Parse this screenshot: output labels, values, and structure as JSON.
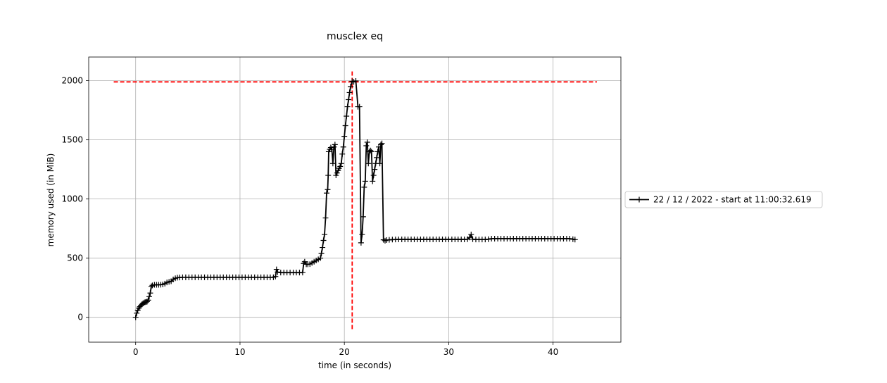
{
  "chart_data": {
    "type": "line",
    "title": "musclex eq",
    "xlabel": "time (in seconds)",
    "ylabel": "memory used (in MiB)",
    "xlim": [
      -4.5,
      46.5
    ],
    "ylim": [
      -210,
      2200
    ],
    "x_ticks": [
      0,
      10,
      20,
      30,
      40
    ],
    "y_ticks": [
      0,
      500,
      1000,
      1500,
      2000
    ],
    "x_tick_labels": [
      "0",
      "10",
      "20",
      "30",
      "40"
    ],
    "y_tick_labels": [
      "0",
      "500",
      "1000",
      "1500",
      "2000"
    ],
    "grid": true,
    "legend_position": "right",
    "series": [
      {
        "name": "22 / 12 / 2022 - start at 11:00:32.619",
        "color": "#000000",
        "marker": "plus",
        "points": [
          [
            0.0,
            0
          ],
          [
            0.1,
            35
          ],
          [
            0.2,
            60
          ],
          [
            0.3,
            78
          ],
          [
            0.4,
            90
          ],
          [
            0.5,
            100
          ],
          [
            0.6,
            110
          ],
          [
            0.7,
            117
          ],
          [
            0.8,
            124
          ],
          [
            0.9,
            128
          ],
          [
            1.0,
            130
          ],
          [
            1.1,
            133
          ],
          [
            1.2,
            145
          ],
          [
            1.3,
            175
          ],
          [
            1.4,
            205
          ],
          [
            1.5,
            262
          ],
          [
            1.6,
            270
          ],
          [
            1.8,
            275
          ],
          [
            2.0,
            275
          ],
          [
            2.2,
            275
          ],
          [
            2.4,
            276
          ],
          [
            2.6,
            278
          ],
          [
            2.8,
            285
          ],
          [
            3.0,
            295
          ],
          [
            3.2,
            300
          ],
          [
            3.4,
            305
          ],
          [
            3.6,
            320
          ],
          [
            3.8,
            330
          ],
          [
            4.0,
            335
          ],
          [
            4.2,
            337
          ],
          [
            4.5,
            338
          ],
          [
            4.8,
            338
          ],
          [
            5.1,
            338
          ],
          [
            5.4,
            338
          ],
          [
            5.7,
            338
          ],
          [
            6.0,
            338
          ],
          [
            6.3,
            338
          ],
          [
            6.6,
            338
          ],
          [
            6.9,
            338
          ],
          [
            7.2,
            338
          ],
          [
            7.5,
            338
          ],
          [
            7.8,
            338
          ],
          [
            8.1,
            338
          ],
          [
            8.4,
            338
          ],
          [
            8.7,
            338
          ],
          [
            9.0,
            338
          ],
          [
            9.3,
            338
          ],
          [
            9.6,
            338
          ],
          [
            9.9,
            338
          ],
          [
            10.2,
            338
          ],
          [
            10.5,
            338
          ],
          [
            10.8,
            338
          ],
          [
            11.1,
            338
          ],
          [
            11.4,
            338
          ],
          [
            11.7,
            338
          ],
          [
            12.0,
            338
          ],
          [
            12.3,
            338
          ],
          [
            12.6,
            338
          ],
          [
            12.9,
            338
          ],
          [
            13.2,
            338
          ],
          [
            13.4,
            345
          ],
          [
            13.5,
            405
          ],
          [
            13.6,
            382
          ],
          [
            13.9,
            378
          ],
          [
            14.2,
            378
          ],
          [
            14.5,
            378
          ],
          [
            14.8,
            378
          ],
          [
            15.1,
            378
          ],
          [
            15.4,
            378
          ],
          [
            15.7,
            378
          ],
          [
            16.0,
            378
          ],
          [
            16.1,
            455
          ],
          [
            16.2,
            470
          ],
          [
            16.35,
            448
          ],
          [
            16.5,
            448
          ],
          [
            16.7,
            450
          ],
          [
            16.9,
            460
          ],
          [
            17.1,
            470
          ],
          [
            17.3,
            480
          ],
          [
            17.5,
            490
          ],
          [
            17.7,
            500
          ],
          [
            17.8,
            540
          ],
          [
            17.9,
            590
          ],
          [
            18.0,
            650
          ],
          [
            18.1,
            700
          ],
          [
            18.2,
            840
          ],
          [
            18.3,
            1050
          ],
          [
            18.4,
            1080
          ],
          [
            18.45,
            1200
          ],
          [
            18.5,
            1400
          ],
          [
            18.6,
            1420
          ],
          [
            18.7,
            1435
          ],
          [
            18.8,
            1420
          ],
          [
            18.9,
            1300
          ],
          [
            19.0,
            1440
          ],
          [
            19.1,
            1460
          ],
          [
            19.2,
            1200
          ],
          [
            19.3,
            1220
          ],
          [
            19.4,
            1240
          ],
          [
            19.5,
            1260
          ],
          [
            19.6,
            1275
          ],
          [
            19.7,
            1300
          ],
          [
            19.8,
            1380
          ],
          [
            19.9,
            1440
          ],
          [
            20.0,
            1530
          ],
          [
            20.1,
            1620
          ],
          [
            20.2,
            1700
          ],
          [
            20.3,
            1780
          ],
          [
            20.4,
            1840
          ],
          [
            20.5,
            1900
          ],
          [
            20.6,
            1950
          ],
          [
            20.75,
            1995
          ],
          [
            20.9,
            1990
          ],
          [
            21.1,
            1998
          ],
          [
            21.3,
            1780
          ],
          [
            21.45,
            1780
          ],
          [
            21.6,
            630
          ],
          [
            21.7,
            700
          ],
          [
            21.8,
            850
          ],
          [
            21.9,
            1100
          ],
          [
            22.0,
            1150
          ],
          [
            22.1,
            1450
          ],
          [
            22.2,
            1480
          ],
          [
            22.3,
            1300
          ],
          [
            22.4,
            1400
          ],
          [
            22.5,
            1410
          ],
          [
            22.6,
            1400
          ],
          [
            22.7,
            1150
          ],
          [
            22.8,
            1200
          ],
          [
            22.9,
            1250
          ],
          [
            23.0,
            1300
          ],
          [
            23.1,
            1350
          ],
          [
            23.2,
            1400
          ],
          [
            23.3,
            1440
          ],
          [
            23.4,
            1300
          ],
          [
            23.5,
            1460
          ],
          [
            23.6,
            1470
          ],
          [
            23.75,
            655
          ],
          [
            23.9,
            648
          ],
          [
            24.05,
            653
          ],
          [
            24.3,
            655
          ],
          [
            24.6,
            657
          ],
          [
            24.9,
            658
          ],
          [
            25.2,
            659
          ],
          [
            25.5,
            659
          ],
          [
            25.8,
            659
          ],
          [
            26.1,
            659
          ],
          [
            26.4,
            659
          ],
          [
            26.7,
            659
          ],
          [
            27.0,
            659
          ],
          [
            27.3,
            659
          ],
          [
            27.6,
            659
          ],
          [
            27.9,
            659
          ],
          [
            28.2,
            659
          ],
          [
            28.5,
            659
          ],
          [
            28.8,
            659
          ],
          [
            29.1,
            659
          ],
          [
            29.4,
            659
          ],
          [
            29.7,
            659
          ],
          [
            30.0,
            659
          ],
          [
            30.3,
            659
          ],
          [
            30.6,
            659
          ],
          [
            30.9,
            659
          ],
          [
            31.2,
            659
          ],
          [
            31.5,
            659
          ],
          [
            31.8,
            660
          ],
          [
            32.0,
            675
          ],
          [
            32.15,
            700
          ],
          [
            32.3,
            660
          ],
          [
            32.6,
            658
          ],
          [
            32.9,
            658
          ],
          [
            33.2,
            658
          ],
          [
            33.5,
            658
          ],
          [
            33.8,
            660
          ],
          [
            34.1,
            665
          ],
          [
            34.4,
            665
          ],
          [
            34.7,
            665
          ],
          [
            35.0,
            665
          ],
          [
            35.3,
            665
          ],
          [
            35.6,
            665
          ],
          [
            35.9,
            665
          ],
          [
            36.2,
            665
          ],
          [
            36.5,
            665
          ],
          [
            36.8,
            665
          ],
          [
            37.1,
            665
          ],
          [
            37.4,
            665
          ],
          [
            37.7,
            665
          ],
          [
            38.0,
            665
          ],
          [
            38.3,
            665
          ],
          [
            38.6,
            665
          ],
          [
            38.9,
            665
          ],
          [
            39.2,
            665
          ],
          [
            39.5,
            665
          ],
          [
            39.8,
            665
          ],
          [
            40.1,
            665
          ],
          [
            40.4,
            665
          ],
          [
            40.7,
            665
          ],
          [
            41.0,
            665
          ],
          [
            41.3,
            665
          ],
          [
            41.6,
            665
          ],
          [
            41.9,
            660
          ],
          [
            42.1,
            657
          ]
        ]
      }
    ],
    "reference_lines": [
      {
        "orientation": "horizontal",
        "value": 1990,
        "from": -2.1,
        "to": 44.2,
        "color": "#ff0000",
        "style": "dashed"
      },
      {
        "orientation": "vertical",
        "value": 20.75,
        "from": -100,
        "to": 2090,
        "color": "#ff0000",
        "style": "dashed"
      }
    ]
  }
}
